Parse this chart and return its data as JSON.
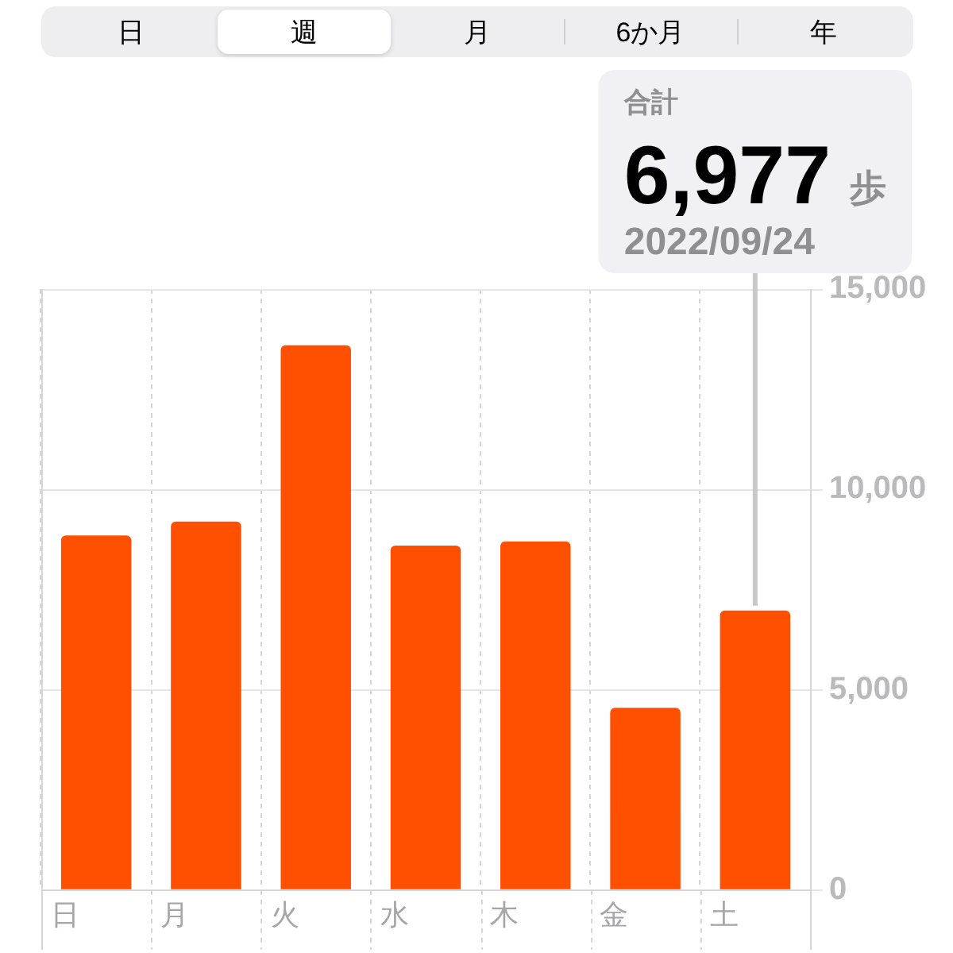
{
  "chart_data": {
    "type": "bar",
    "categories": [
      "日",
      "月",
      "火",
      "水",
      "木",
      "金",
      "土"
    ],
    "values": [
      8850,
      9200,
      13600,
      8600,
      8700,
      4550,
      6977
    ],
    "color": "#ff4f00",
    "ylim": [
      0,
      15000
    ],
    "yticks": [
      0,
      {
        "value": 5000,
        "label": "5,000"
      },
      {
        "value": 10000,
        "label": "10,000"
      },
      {
        "value": 15000,
        "label": "15,000"
      }
    ],
    "grid": true,
    "value_labels": [
      null,
      null,
      null,
      null,
      null,
      null,
      "6,977"
    ],
    "annotations": [
      "日",
      "週",
      "月",
      "6か月",
      "年",
      "合計",
      "歩",
      "2022/09/24"
    ]
  }
}
